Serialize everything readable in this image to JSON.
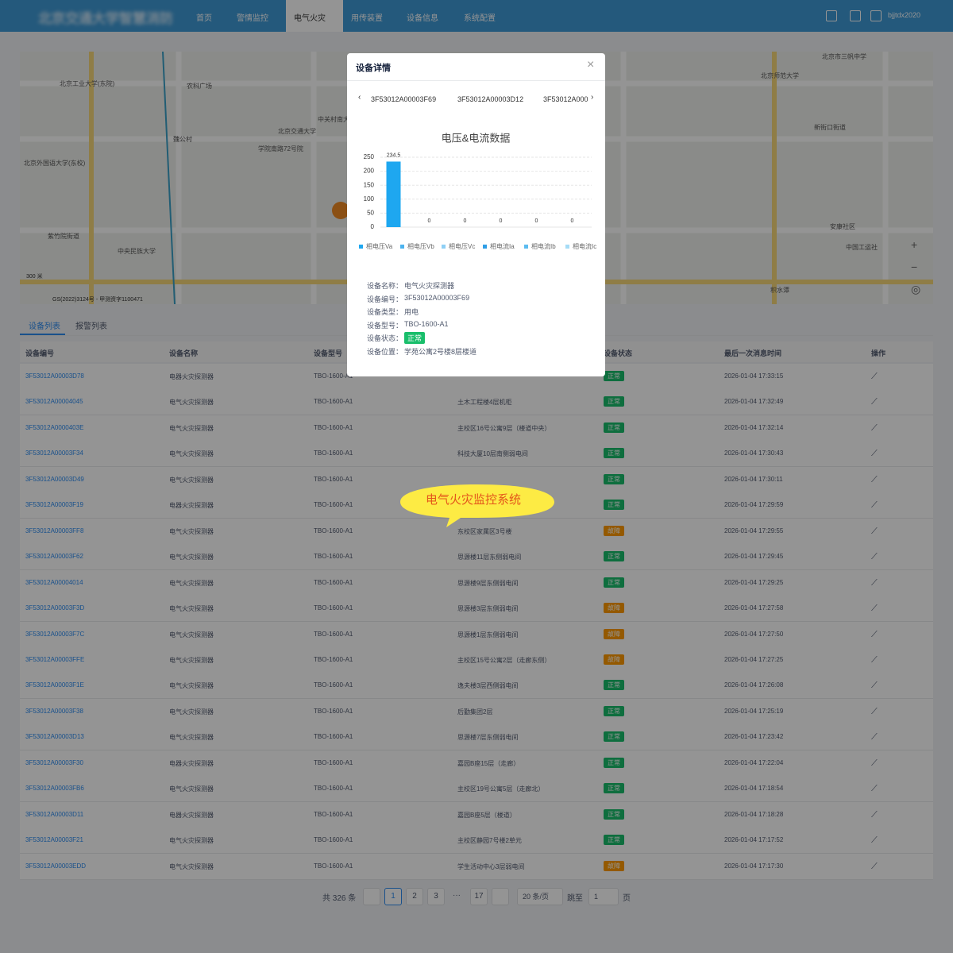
{
  "header": {
    "title": "北京交通大学智慧消防",
    "nav": [
      "首页",
      "警情监控",
      "电气火灾",
      "用传装置",
      "设备信息",
      "系统配置"
    ],
    "user": "bjjtdx2020"
  },
  "map": {
    "labels": [
      "北京工业大学(东院)",
      "北京外国语大学(东校)",
      "魏公村",
      "农科广场",
      "紫竹院街道",
      "中央民族大学",
      "北京交通大学",
      "学院南路72号院",
      "中关村南大街",
      "北京市三帆中学",
      "北京师范大学",
      "新街口街道",
      "安康社区",
      "中国工运社",
      "积水潭"
    ],
    "scale": "300 米",
    "copyright": "GS(2022)3124号 - 甲测资字1100471"
  },
  "tabs": [
    "设备列表",
    "报警列表"
  ],
  "table": {
    "headers": [
      "设备编号",
      "设备名称",
      "设备型号",
      null,
      "设备状态",
      "最后一次消息时间",
      "操作"
    ],
    "rows": [
      [
        "3F53012A00003D78",
        "电器火灾探测器",
        "TBO-1600-A1",
        null,
        "正常",
        "2026-01-04 17:33:15"
      ],
      [
        "3F53012A00004045",
        "电气火灾探测器",
        "TBO-1600-A1",
        "土木工程楼4层机柜",
        "正常",
        "2026-01-04 17:32:49"
      ],
      [
        "3F53012A0000403E",
        "电气火灾探测器",
        "TBO-1600-A1",
        "主校区16号公寓9层（楼道中央）",
        "正常",
        "2026-01-04 17:32:14"
      ],
      [
        "3F53012A00003F34",
        "电气火灾探测器",
        "TBO-1600-A1",
        "科技大厦10层南侧弱电间",
        "正常",
        "2026-01-04 17:30:43"
      ],
      [
        "3F53012A00003D49",
        "电气火灾探测器",
        "TBO-1600-A1",
        null,
        "正常",
        "2026-01-04 17:30:11"
      ],
      [
        "3F53012A00003F19",
        "电器火灾探测器",
        "TBO-1600-A1",
        null,
        "正常",
        "2026-01-04 17:29:59"
      ],
      [
        "3F53012A00003FF8",
        "电气火灾探测器",
        "TBO-1600-A1",
        "东校区家属区3号楼",
        "故障",
        "2026-01-04 17:29:55"
      ],
      [
        "3F53012A00003F62",
        "电气火灾探测器",
        "TBO-1600-A1",
        "思源楼11层东侧弱电间",
        "正常",
        "2026-01-04 17:29:45"
      ],
      [
        "3F53012A00004014",
        "电气火灾探测器",
        "TBO-1600-A1",
        "思源楼9层东侧弱电间",
        "正常",
        "2026-01-04 17:29:25"
      ],
      [
        "3F53012A00003F3D",
        "电气火灾探测器",
        "TBO-1600-A1",
        "思源楼3层东侧弱电间",
        "故障",
        "2026-01-04 17:27:58"
      ],
      [
        "3F53012A00003F7C",
        "电气火灾探测器",
        "TBO-1600-A1",
        "思源楼1层东侧弱电间",
        "故障",
        "2026-01-04 17:27:50"
      ],
      [
        "3F53012A00003FFE",
        "电气火灾探测器",
        "TBO-1600-A1",
        "主校区15号公寓2层（走廊东侧）",
        "故障",
        "2026-01-04 17:27:25"
      ],
      [
        "3F53012A00003F1E",
        "电气火灾探测器",
        "TBO-1600-A1",
        "逸夫楼3层西侧弱电间",
        "正常",
        "2026-01-04 17:26:08"
      ],
      [
        "3F53012A00003F38",
        "电气火灾探测器",
        "TBO-1600-A1",
        "后勤集团2层",
        "正常",
        "2026-01-04 17:25:19"
      ],
      [
        "3F53012A00003D13",
        "电气火灾探测器",
        "TBO-1600-A1",
        "思源楼7层东侧弱电间",
        "正常",
        "2026-01-04 17:23:42"
      ],
      [
        "3F53012A00003F30",
        "电器火灾探测器",
        "TBO-1600-A1",
        "嘉园B座15层（走廊）",
        "正常",
        "2026-01-04 17:22:04"
      ],
      [
        "3F53012A00003FB6",
        "电气火灾探测器",
        "TBO-1600-A1",
        "主校区19号公寓5层（走廊北）",
        "正常",
        "2026-01-04 17:18:54"
      ],
      [
        "3F53012A00003D11",
        "电器火灾探测器",
        "TBO-1600-A1",
        "嘉园B座5层（楼道）",
        "正常",
        "2026-01-04 17:18:28"
      ],
      [
        "3F53012A00003F21",
        "电气火灾探测器",
        "TBO-1600-A1",
        "主校区静园7号楼2单元",
        "正常",
        "2026-01-04 17:17:52"
      ],
      [
        "3F53012A00003EDD",
        "电气火灾探测器",
        "TBO-1600-A1",
        "学生活动中心3层弱电间",
        "故障",
        "2026-01-04 17:17:30"
      ]
    ]
  },
  "pagination": {
    "total": "共 326 条",
    "pages": [
      1,
      2,
      3,
      "···",
      17
    ],
    "size": "20 条/页",
    "jump": "跳至",
    "input": "1",
    "unit": "页"
  },
  "modal": {
    "title": "设备详情",
    "device_tabs": [
      "3F53012A00003F69",
      "3F53012A00003D12",
      "3F53012A000"
    ],
    "chart_data": {
      "type": "bar",
      "title": "电压&电流数据",
      "categories": [
        "相电压Va",
        "相电压Vb",
        "相电压Vc",
        "相电流Ia",
        "相电流Ib",
        "相电流Ic"
      ],
      "values": [
        234.5,
        0,
        0,
        0,
        0,
        0
      ],
      "colors": [
        "#1ea7f0",
        "#4cb3ef",
        "#8fd0f5",
        "#2f9ee6",
        "#5cbcf0",
        "#a6dcf6"
      ],
      "ylim": [
        0,
        250
      ],
      "yticks": [
        0,
        50,
        100,
        150,
        200,
        250
      ],
      "grid": true
    },
    "details": [
      [
        "设备名称：",
        "电气火灾探测器"
      ],
      [
        "设备编号：",
        "3F53012A00003F69"
      ],
      [
        "设备类型：",
        "用电"
      ],
      [
        "设备型号：",
        "TBO-1600-A1"
      ],
      [
        "设备状态：",
        "正常"
      ],
      [
        "设备位置：",
        "学苑公寓2号楼8层楼道"
      ]
    ]
  },
  "bubble": "电气火灾监控系统"
}
